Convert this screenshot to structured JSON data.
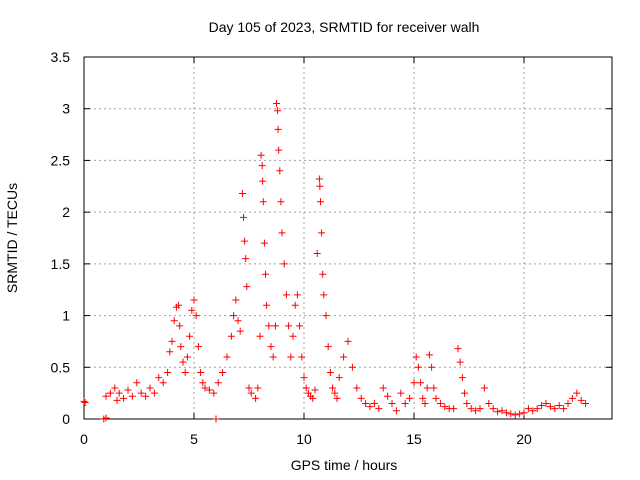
{
  "chart_data": {
    "type": "scatter",
    "title": "Day 105 of 2023, SRMTID for receiver walh",
    "xlabel": "GPS time / hours",
    "ylabel": "SRMTID / TECUs",
    "xlim": [
      0,
      24
    ],
    "ylim": [
      0,
      3.5
    ],
    "xticks": [
      0,
      5,
      10,
      15,
      20
    ],
    "xtick_labels": [
      "0",
      "5",
      "10",
      "15",
      "20"
    ],
    "yticks": [
      0,
      0.5,
      1,
      1.5,
      2,
      2.5,
      3,
      3.5
    ],
    "ytick_labels": [
      "0",
      "0.5",
      "1",
      "1.5",
      "2",
      "2.5",
      "3",
      "3.5"
    ],
    "grid": true,
    "marker": "+",
    "colors": {
      "series": "#ff0000",
      "grid": "#a0a0a0",
      "axis": "#000000"
    },
    "series": [
      {
        "name": "SRMTID",
        "points": [
          [
            0.0,
            0.17
          ],
          [
            0.05,
            0.16
          ],
          [
            0.9,
            0.0
          ],
          [
            1.0,
            0.01
          ],
          [
            1.0,
            0.22
          ],
          [
            1.2,
            0.25
          ],
          [
            1.4,
            0.3
          ],
          [
            1.5,
            0.18
          ],
          [
            1.6,
            0.25
          ],
          [
            1.8,
            0.2
          ],
          [
            2.0,
            0.28
          ],
          [
            2.2,
            0.22
          ],
          [
            2.4,
            0.35
          ],
          [
            2.6,
            0.25
          ],
          [
            2.8,
            0.22
          ],
          [
            3.0,
            0.3
          ],
          [
            3.2,
            0.25
          ],
          [
            3.4,
            0.4
          ],
          [
            3.6,
            0.35
          ],
          [
            3.8,
            0.45
          ],
          [
            3.9,
            0.65
          ],
          [
            4.0,
            0.75
          ],
          [
            4.1,
            0.95
          ],
          [
            4.2,
            1.08
          ],
          [
            4.3,
            1.1
          ],
          [
            4.35,
            0.9
          ],
          [
            4.4,
            0.7
          ],
          [
            4.5,
            0.55
          ],
          [
            4.6,
            0.45
          ],
          [
            4.7,
            0.6
          ],
          [
            4.8,
            0.8
          ],
          [
            4.9,
            1.05
          ],
          [
            5.0,
            1.15
          ],
          [
            5.1,
            1.0
          ],
          [
            5.2,
            0.7
          ],
          [
            5.3,
            0.45
          ],
          [
            5.4,
            0.35
          ],
          [
            5.5,
            0.3
          ],
          [
            5.7,
            0.28
          ],
          [
            5.9,
            0.25
          ],
          [
            6.0,
            0.0
          ],
          [
            6.1,
            0.35
          ],
          [
            6.3,
            0.45
          ],
          [
            6.5,
            0.6
          ],
          [
            6.7,
            0.8
          ],
          [
            6.8,
            1.0
          ],
          [
            6.9,
            1.15
          ],
          [
            7.0,
            0.95
          ],
          [
            7.1,
            0.85
          ],
          [
            7.2,
            2.18
          ],
          [
            7.25,
            1.95
          ],
          [
            7.3,
            1.72
          ],
          [
            7.35,
            1.55
          ],
          [
            7.4,
            1.28
          ],
          [
            7.5,
            0.3
          ],
          [
            7.6,
            0.25
          ],
          [
            7.8,
            0.2
          ],
          [
            7.9,
            0.3
          ],
          [
            8.0,
            0.8
          ],
          [
            8.05,
            2.55
          ],
          [
            8.1,
            2.45
          ],
          [
            8.12,
            2.3
          ],
          [
            8.15,
            2.1
          ],
          [
            8.2,
            1.7
          ],
          [
            8.25,
            1.4
          ],
          [
            8.3,
            1.1
          ],
          [
            8.4,
            0.9
          ],
          [
            8.5,
            0.7
          ],
          [
            8.6,
            0.6
          ],
          [
            8.7,
            0.9
          ],
          [
            8.75,
            3.05
          ],
          [
            8.8,
            2.98
          ],
          [
            8.82,
            2.8
          ],
          [
            8.85,
            2.6
          ],
          [
            8.9,
            2.4
          ],
          [
            8.95,
            2.1
          ],
          [
            9.0,
            1.8
          ],
          [
            9.1,
            1.5
          ],
          [
            9.2,
            1.2
          ],
          [
            9.3,
            0.9
          ],
          [
            9.4,
            0.6
          ],
          [
            9.5,
            0.8
          ],
          [
            9.6,
            1.1
          ],
          [
            9.7,
            1.2
          ],
          [
            9.8,
            0.9
          ],
          [
            9.9,
            0.6
          ],
          [
            10.0,
            0.4
          ],
          [
            10.1,
            0.3
          ],
          [
            10.2,
            0.25
          ],
          [
            10.3,
            0.22
          ],
          [
            10.4,
            0.2
          ],
          [
            10.5,
            0.28
          ],
          [
            10.6,
            1.6
          ],
          [
            10.7,
            2.32
          ],
          [
            10.72,
            2.25
          ],
          [
            10.75,
            2.1
          ],
          [
            10.8,
            1.8
          ],
          [
            10.85,
            1.4
          ],
          [
            10.9,
            1.2
          ],
          [
            11.0,
            1.0
          ],
          [
            11.1,
            0.7
          ],
          [
            11.2,
            0.45
          ],
          [
            11.3,
            0.3
          ],
          [
            11.4,
            0.25
          ],
          [
            11.5,
            0.2
          ],
          [
            11.6,
            0.4
          ],
          [
            11.8,
            0.6
          ],
          [
            12.0,
            0.75
          ],
          [
            12.2,
            0.5
          ],
          [
            12.4,
            0.3
          ],
          [
            12.6,
            0.2
          ],
          [
            12.8,
            0.15
          ],
          [
            13.0,
            0.12
          ],
          [
            13.2,
            0.15
          ],
          [
            13.4,
            0.1
          ],
          [
            13.6,
            0.3
          ],
          [
            13.8,
            0.22
          ],
          [
            14.0,
            0.15
          ],
          [
            14.2,
            0.08
          ],
          [
            14.4,
            0.25
          ],
          [
            14.6,
            0.15
          ],
          [
            14.8,
            0.2
          ],
          [
            15.0,
            0.35
          ],
          [
            15.1,
            0.6
          ],
          [
            15.2,
            0.5
          ],
          [
            15.3,
            0.35
          ],
          [
            15.4,
            0.2
          ],
          [
            15.5,
            0.15
          ],
          [
            15.6,
            0.3
          ],
          [
            15.7,
            0.62
          ],
          [
            15.8,
            0.5
          ],
          [
            15.9,
            0.3
          ],
          [
            16.0,
            0.2
          ],
          [
            16.2,
            0.15
          ],
          [
            16.4,
            0.12
          ],
          [
            16.6,
            0.1
          ],
          [
            16.8,
            0.1
          ],
          [
            17.0,
            0.68
          ],
          [
            17.1,
            0.55
          ],
          [
            17.2,
            0.4
          ],
          [
            17.3,
            0.25
          ],
          [
            17.4,
            0.15
          ],
          [
            17.6,
            0.1
          ],
          [
            17.8,
            0.08
          ],
          [
            18.0,
            0.1
          ],
          [
            18.2,
            0.3
          ],
          [
            18.4,
            0.15
          ],
          [
            18.6,
            0.1
          ],
          [
            18.8,
            0.07
          ],
          [
            19.0,
            0.08
          ],
          [
            19.2,
            0.06
          ],
          [
            19.4,
            0.05
          ],
          [
            19.6,
            0.04
          ],
          [
            19.8,
            0.05
          ],
          [
            20.0,
            0.06
          ],
          [
            20.2,
            0.1
          ],
          [
            20.4,
            0.08
          ],
          [
            20.6,
            0.1
          ],
          [
            20.8,
            0.13
          ],
          [
            21.0,
            0.15
          ],
          [
            21.2,
            0.12
          ],
          [
            21.4,
            0.1
          ],
          [
            21.6,
            0.13
          ],
          [
            21.8,
            0.1
          ],
          [
            22.0,
            0.15
          ],
          [
            22.2,
            0.2
          ],
          [
            22.4,
            0.25
          ],
          [
            22.6,
            0.18
          ],
          [
            22.8,
            0.15
          ]
        ]
      }
    ]
  }
}
